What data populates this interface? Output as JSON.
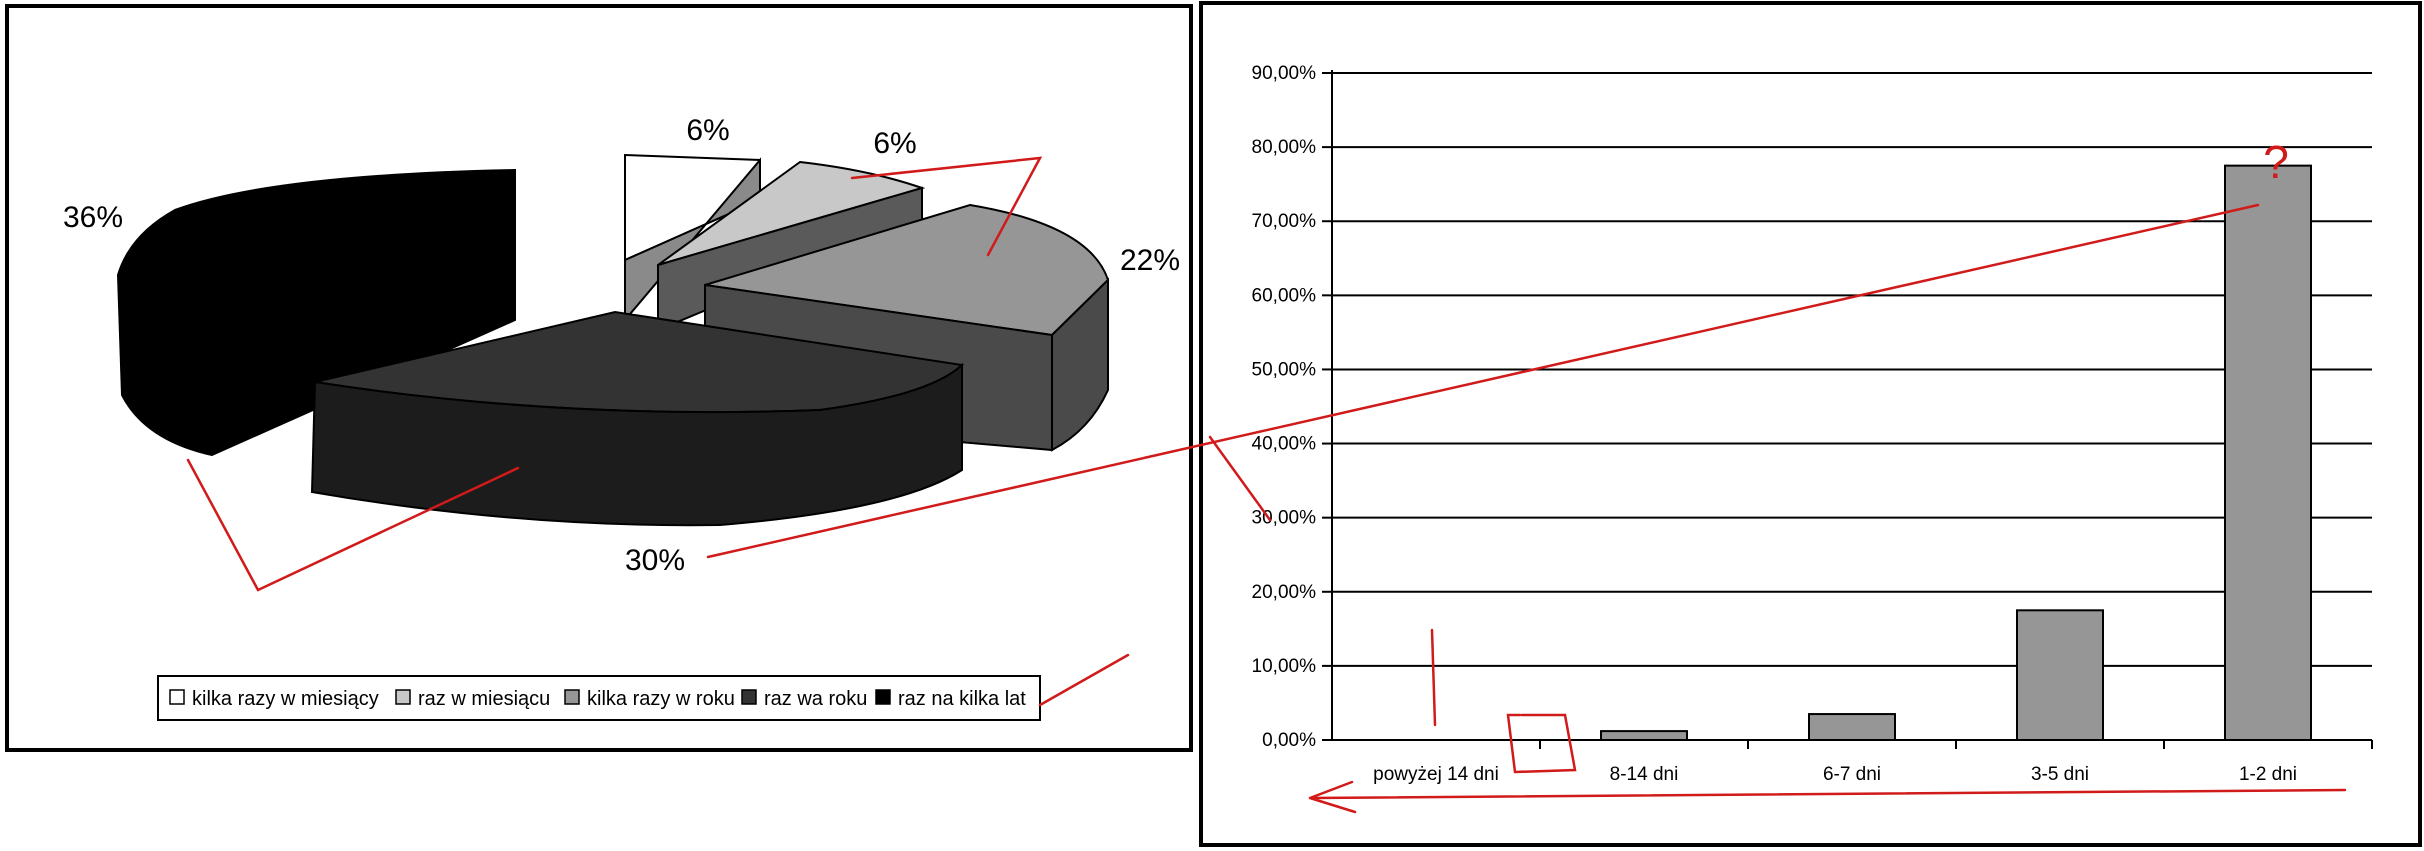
{
  "chart_data": [
    {
      "type": "pie",
      "title": "",
      "slices": [
        {
          "label": "kilka razy w miesiący",
          "value": 6,
          "value_label": "6%",
          "color": "#ffffff"
        },
        {
          "label": "raz w miesiącu",
          "value": 6,
          "value_label": "6%",
          "color": "#c8c8c8"
        },
        {
          "label": "kilka razy w roku",
          "value": 22,
          "value_label": "22%",
          "color": "#969696"
        },
        {
          "label": "raz wa roku",
          "value": 30,
          "value_label": "30%",
          "color": "#333333"
        },
        {
          "label": "raz na kilka lat",
          "value": 36,
          "value_label": "36%",
          "color": "#000000"
        }
      ],
      "legend_position": "bottom",
      "style": "3d-exploded"
    },
    {
      "type": "bar",
      "title": "",
      "xlabel": "",
      "ylabel": "",
      "categories": [
        "powyżej 14 dni",
        "8-14 dni",
        "6-7 dni",
        "3-5 dni",
        "1-2 dni"
      ],
      "values": [
        0,
        1.2,
        3.5,
        17.5,
        77.5
      ],
      "ylim": [
        0,
        90
      ],
      "yticks": [
        "0,00%",
        "10,00%",
        "20,00%",
        "30,00%",
        "40,00%",
        "50,00%",
        "60,00%",
        "70,00%",
        "80,00%",
        "90,00%"
      ],
      "bar_color": "#969696",
      "grid": true
    }
  ],
  "annotations": {
    "question_mark": "?",
    "color": "#d11a1a"
  }
}
